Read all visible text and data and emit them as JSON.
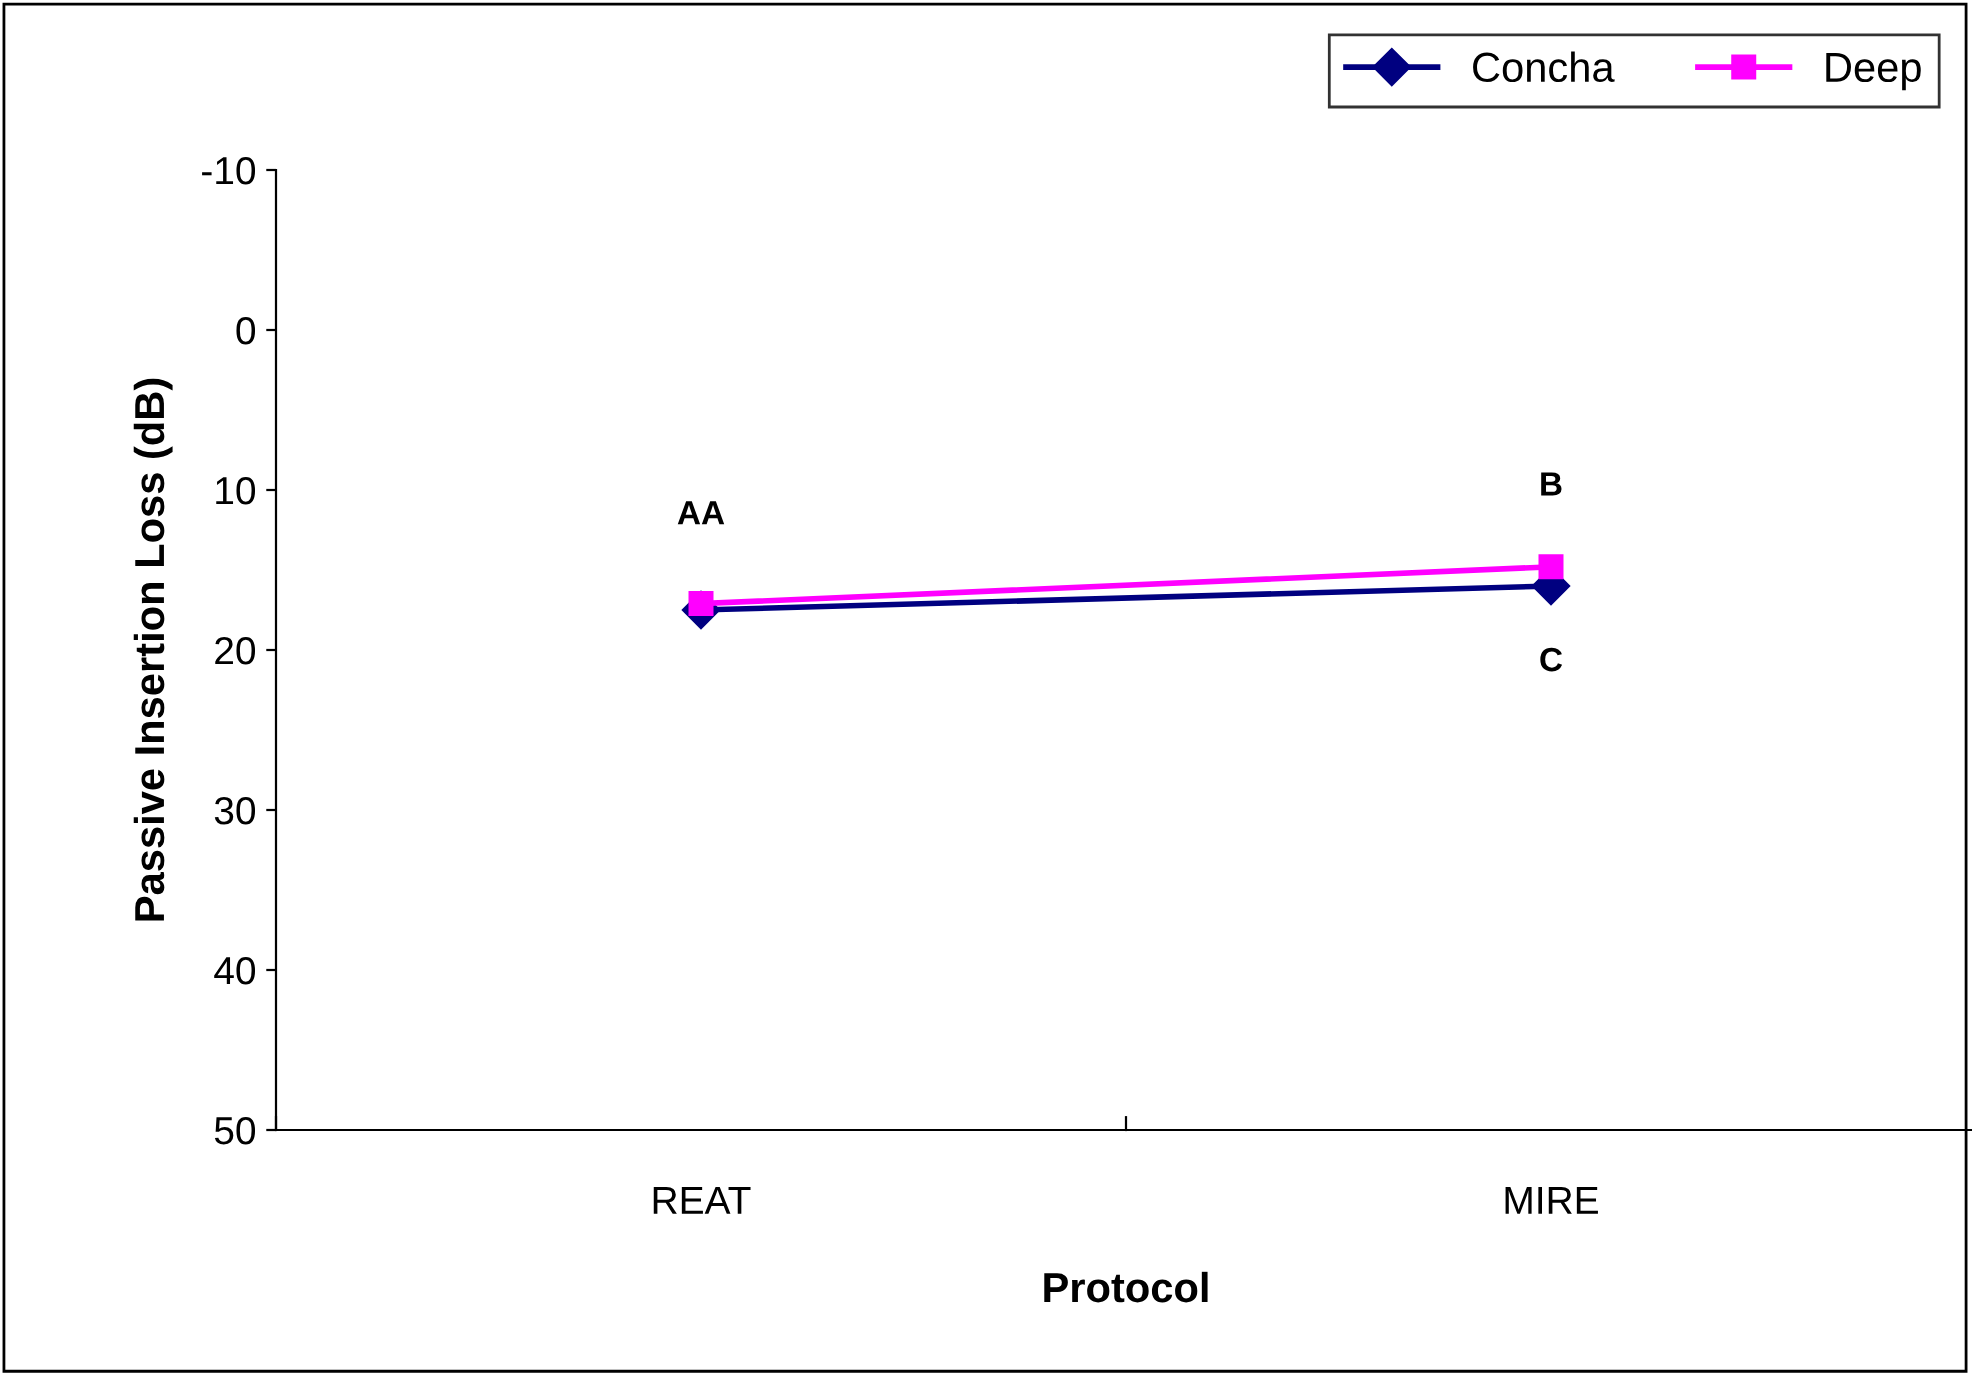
{
  "chart_data": {
    "type": "line",
    "xlabel": "Protocol",
    "ylabel": "Passive Insertion Loss (dB)",
    "categories": [
      "REAT",
      "MIRE"
    ],
    "series": [
      {
        "name": "Concha",
        "color": "#000080",
        "marker": "diamond",
        "values": [
          17.5,
          16.0
        ]
      },
      {
        "name": "Deep",
        "color": "#ff00ff",
        "marker": "square",
        "values": [
          17.1,
          14.8
        ]
      }
    ],
    "ylim": [
      50,
      -10
    ],
    "yticks": [
      -10,
      0,
      10,
      20,
      30,
      40,
      50
    ],
    "grid": false,
    "legend": "top right",
    "annotations": [
      "AA",
      "B",
      "C"
    ]
  }
}
